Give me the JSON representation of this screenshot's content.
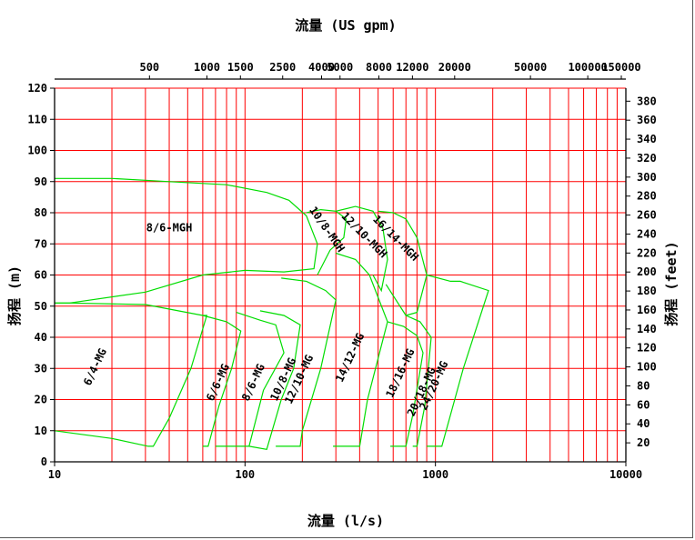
{
  "chart_data": {
    "type": "line",
    "title_top": "流量 (US gpm)",
    "xlabel": "流量 (l/s)",
    "ylabel_left": "扬程 (m)",
    "ylabel_right": "扬程 (feet)",
    "x_scale": "log",
    "xlim": [
      10,
      10000
    ],
    "ylim": [
      0,
      120
    ],
    "grid": true,
    "grid_color": "#ff0000",
    "curve_color": "#00dd00",
    "x_ticks": [
      "10",
      "100",
      "1000",
      "10000"
    ],
    "y_ticks": [
      "0",
      "10",
      "20",
      "30",
      "40",
      "50",
      "60",
      "70",
      "80",
      "90",
      "100",
      "110",
      "120"
    ],
    "top_ticks": [
      {
        "label": "500",
        "lps": 31.5
      },
      {
        "label": "1000",
        "lps": 63.1
      },
      {
        "label": "1500",
        "lps": 94.6
      },
      {
        "label": "2500",
        "lps": 157.7
      },
      {
        "label": "4000",
        "lps": 252.4
      },
      {
        "label": "5000",
        "lps": 315.5
      },
      {
        "label": "8000",
        "lps": 504.7
      },
      {
        "label": "12000",
        "lps": 757.1
      },
      {
        "label": "20000",
        "lps": 1261.8
      },
      {
        "label": "50000",
        "lps": 3154.5
      },
      {
        "label": "100000",
        "lps": 6309
      },
      {
        "label": "150000",
        "lps": 9463.5
      }
    ],
    "right_ticks": [
      {
        "label": "20",
        "ft": 20
      },
      {
        "label": "40",
        "ft": 40
      },
      {
        "label": "60",
        "ft": 60
      },
      {
        "label": "80",
        "ft": 80
      },
      {
        "label": "100",
        "ft": 100
      },
      {
        "label": "120",
        "ft": 120
      },
      {
        "label": "140",
        "ft": 140
      },
      {
        "label": "160",
        "ft": 160
      },
      {
        "label": "180",
        "ft": 180
      },
      {
        "label": "200",
        "ft": 200
      },
      {
        "label": "220",
        "ft": 220
      },
      {
        "label": "240",
        "ft": 240
      },
      {
        "label": "260",
        "ft": 260
      },
      {
        "label": "280",
        "ft": 280
      },
      {
        "label": "300",
        "ft": 300
      },
      {
        "label": "320",
        "ft": 320
      },
      {
        "label": "340",
        "ft": 340
      },
      {
        "label": "360",
        "ft": 360
      },
      {
        "label": "380",
        "ft": 380
      }
    ],
    "series": [
      {
        "name": "6/4-MG",
        "label_at": [
          17,
          30
        ],
        "label_rotate": -65,
        "points": [
          [
            10,
            51
          ],
          [
            12,
            51
          ],
          [
            30,
            50.5
          ],
          [
            60,
            47
          ],
          [
            63,
            47
          ],
          [
            52,
            30
          ],
          [
            40,
            14
          ],
          [
            33,
            5
          ],
          [
            31,
            5
          ],
          [
            20,
            7.5
          ],
          [
            10,
            10
          ]
        ]
      },
      {
        "name": "8/6-MGH",
        "label_at": [
          40,
          74
        ],
        "label_rotate": 0,
        "points": [
          [
            10,
            91
          ],
          [
            20,
            91
          ],
          [
            40,
            90
          ],
          [
            80,
            89
          ],
          [
            130,
            86.5
          ],
          [
            170,
            84
          ],
          [
            210,
            79
          ],
          [
            240,
            70
          ],
          [
            230,
            62
          ],
          [
            160,
            61
          ],
          [
            100,
            61.5
          ],
          [
            60,
            60
          ],
          [
            30,
            54.5
          ],
          [
            12,
            51
          ],
          [
            10,
            51
          ]
        ]
      },
      {
        "name": "6/6-MG",
        "label_at": [
          75,
          25
        ],
        "label_rotate": -65,
        "points": [
          [
            60,
            47
          ],
          [
            80,
            45
          ],
          [
            95,
            42
          ],
          [
            85,
            30
          ],
          [
            73,
            18
          ],
          [
            64,
            5
          ],
          [
            60,
            5
          ]
        ]
      },
      {
        "name": "8/6-MG",
        "label_at": [
          115,
          25
        ],
        "label_rotate": -65,
        "points": [
          [
            90,
            48
          ],
          [
            120,
            45.5
          ],
          [
            145,
            44
          ],
          [
            160,
            35
          ],
          [
            125,
            23
          ],
          [
            105,
            5
          ],
          [
            70,
            5
          ]
        ]
      },
      {
        "name": "10/8-MG",
        "label_at": [
          165,
          26
        ],
        "label_rotate": -65,
        "points": [
          [
            120,
            48.5
          ],
          [
            160,
            47
          ],
          [
            195,
            44
          ],
          [
            180,
            30
          ],
          [
            155,
            20
          ],
          [
            130,
            4
          ],
          [
            105,
            5
          ]
        ]
      },
      {
        "name": "12/10-MG",
        "label_at": [
          200,
          26
        ],
        "label_rotate": -65,
        "points": [
          [
            155,
            59
          ],
          [
            210,
            58
          ],
          [
            265,
            55
          ],
          [
            300,
            52
          ],
          [
            250,
            30
          ],
          [
            200,
            10
          ],
          [
            195,
            5
          ],
          [
            145,
            5
          ]
        ]
      },
      {
        "name": "14/12-MG",
        "label_at": [
          370,
          33
        ],
        "label_rotate": -65,
        "points": [
          [
            300,
            67
          ],
          [
            380,
            65
          ],
          [
            450,
            60
          ],
          [
            560,
            45
          ],
          [
            440,
            20
          ],
          [
            400,
            5
          ],
          [
            290,
            5
          ]
        ]
      },
      {
        "name": "10/8-MGH",
        "label_at": [
          260,
          74
        ],
        "label_rotate": 55,
        "points": [
          [
            210,
            80
          ],
          [
            250,
            81
          ],
          [
            300,
            80.5
          ],
          [
            340,
            78
          ],
          [
            330,
            72
          ],
          [
            280,
            68
          ],
          [
            240,
            60
          ]
        ]
      },
      {
        "name": "12/10-MGH",
        "label_at": [
          410,
          72
        ],
        "label_rotate": 45,
        "points": [
          [
            300,
            80.5
          ],
          [
            380,
            82
          ],
          [
            470,
            80.5
          ],
          [
            530,
            75
          ],
          [
            560,
            65
          ],
          [
            520,
            55
          ],
          [
            470,
            60
          ]
        ]
      },
      {
        "name": "16/14-MGH",
        "label_at": [
          600,
          71
        ],
        "label_rotate": 45,
        "points": [
          [
            500,
            80.5
          ],
          [
            600,
            80
          ],
          [
            700,
            78
          ],
          [
            800,
            72
          ],
          [
            900,
            60
          ],
          [
            800,
            48
          ],
          [
            700,
            47
          ],
          [
            550,
            57
          ]
        ]
      },
      {
        "name": "18/16-MG",
        "label_at": [
          680,
          28
        ],
        "label_rotate": -65,
        "points": [
          [
            560,
            45
          ],
          [
            680,
            43.5
          ],
          [
            800,
            40.5
          ],
          [
            860,
            35
          ],
          [
            760,
            15
          ],
          [
            700,
            5
          ],
          [
            580,
            5
          ]
        ]
      },
      {
        "name": "20/18-MG",
        "label_at": [
          880,
          22
        ],
        "label_rotate": -65,
        "points": [
          [
            700,
            47
          ],
          [
            830,
            45
          ],
          [
            950,
            40
          ],
          [
            880,
            18
          ],
          [
            800,
            5
          ],
          [
            760,
            5
          ]
        ]
      },
      {
        "name": "24/20-MG",
        "label_at": [
          1020,
          24
        ],
        "label_rotate": -65,
        "points": [
          [
            900,
            60
          ],
          [
            1200,
            58
          ],
          [
            1350,
            58
          ],
          [
            1900,
            55
          ],
          [
            1400,
            30
          ],
          [
            1080,
            5
          ],
          [
            900,
            5
          ]
        ]
      }
    ]
  }
}
